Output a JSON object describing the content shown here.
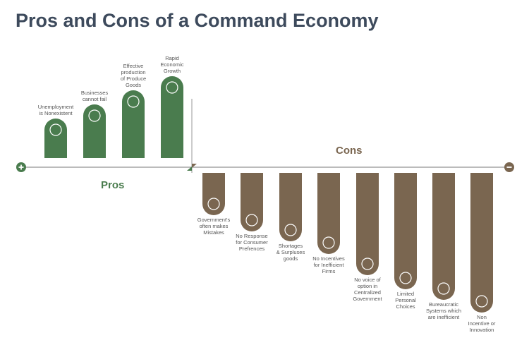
{
  "title": "Pros and Cons of a Command Economy",
  "pros": {
    "label": "Pros",
    "items": [
      "Unemployment\nis Nonexistent",
      "Businesses\ncannot fail",
      "Effective\nproduction\nof  Produce\nGoods",
      "Rapid\nEconomic\nGrowth"
    ]
  },
  "cons": {
    "label": "Cons",
    "items": [
      "Government's\noften makes\nMistakes",
      "No Response\nfor Consumer\nPrefrences",
      "Shortages\n& Surpluses\ngoods",
      "No Incentives\nfor Inefficient\nFirms",
      "No voice of\noption in\nCentralized\nGovernment",
      "Limited\nPersonal\nChoices",
      "Bureaucratic\nSystems which\nare inefficient",
      "Non\nIncentive  or\nInnovation"
    ]
  }
}
